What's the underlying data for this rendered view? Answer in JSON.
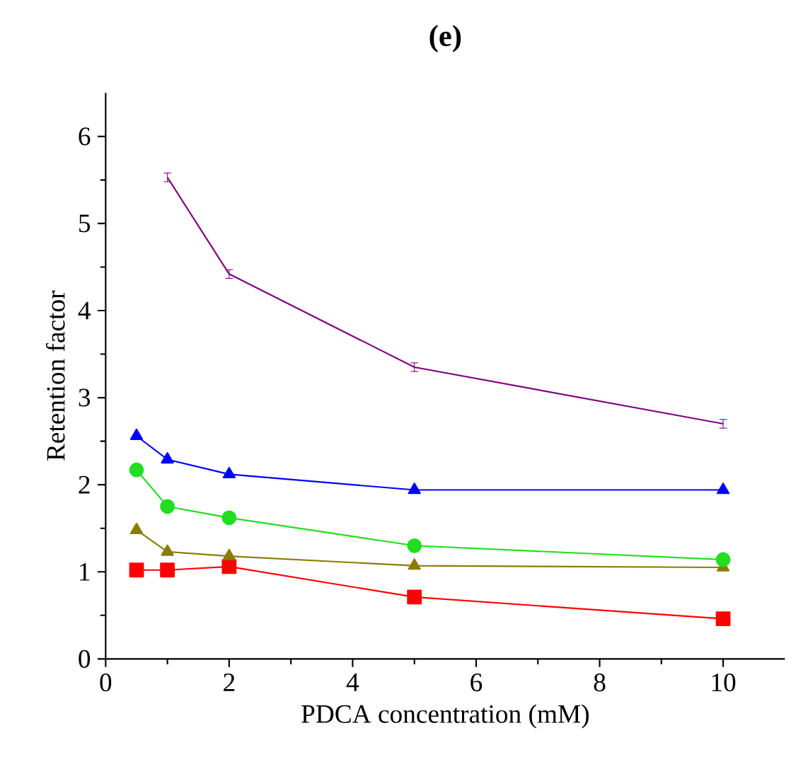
{
  "chart_data": {
    "type": "line",
    "title": "(e)",
    "xlabel": "PDCA concentration (mM)",
    "ylabel": "Retention factor",
    "xlim": [
      0,
      11
    ],
    "ylim": [
      0,
      6.5
    ],
    "xticks": [
      0,
      2,
      4,
      6,
      8,
      10
    ],
    "yticks": [
      0,
      1,
      2,
      3,
      4,
      5,
      6
    ],
    "grid": false,
    "series": [
      {
        "color": "#ff0000",
        "marker": "square",
        "x": [
          0.5,
          1,
          2,
          5,
          10
        ],
        "values": [
          1.02,
          1.02,
          1.06,
          0.71,
          0.46
        ]
      },
      {
        "color": "#8b7d00",
        "marker": "triangle",
        "x": [
          0.5,
          1,
          2,
          5,
          10
        ],
        "values": [
          1.48,
          1.23,
          1.18,
          1.07,
          1.05
        ]
      },
      {
        "color": "#22dd22",
        "marker": "circle",
        "x": [
          0.5,
          1,
          2,
          5,
          10
        ],
        "values": [
          2.17,
          1.75,
          1.62,
          1.3,
          1.14
        ]
      },
      {
        "color": "#0000ff",
        "marker": "triangle",
        "x": [
          0.5,
          1,
          2,
          5,
          10
        ],
        "values": [
          2.56,
          2.29,
          2.12,
          1.94,
          1.94
        ]
      },
      {
        "color": "#800080",
        "marker": "none",
        "x": [
          1,
          2,
          5,
          10
        ],
        "values": [
          5.53,
          4.42,
          3.35,
          2.7
        ],
        "errors": [
          0.05,
          0.05,
          0.05,
          0.05
        ]
      }
    ]
  }
}
